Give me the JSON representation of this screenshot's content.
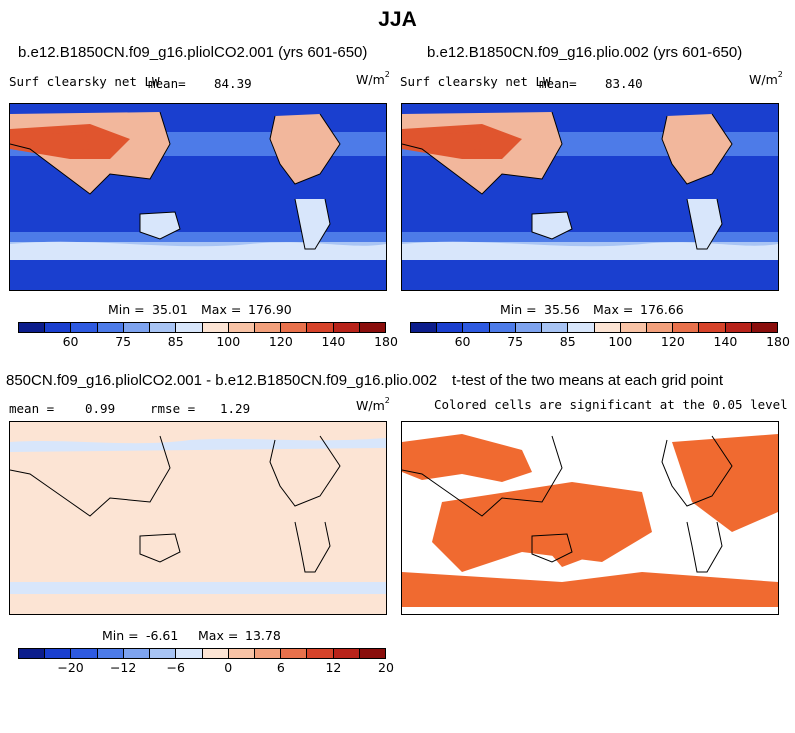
{
  "title": "JJA",
  "colors": {
    "ocean_deep": "#1a3fcf",
    "ocean_mid": "#4d7be8",
    "ocean_light": "#a8c4f4",
    "ocean_pale": "#d8e6fb",
    "land_warm": "#f2b79c",
    "land_hot": "#e0552e",
    "diff_bg": "#fce4d4",
    "sig": "#f06a30",
    "coast": "#000000"
  },
  "chart_data": [
    {
      "type": "heatmap",
      "title": "b.e12.B1850CN.f09_g16.pliolCO2.001 (yrs 601-650)",
      "variable": "Surf clearsky net LW",
      "mean_label": "mean=",
      "mean": "84.39",
      "units_base": "W/m",
      "units_exp": "2",
      "min_label": "Min =",
      "min": "35.01",
      "max_label": "Max =",
      "max": "176.90",
      "colorbar_colors": [
        "#0c1d8c",
        "#1a3fcf",
        "#2e5ae0",
        "#4d7be8",
        "#7ea3ef",
        "#a8c4f4",
        "#d8e6fb",
        "#fce4d4",
        "#f8c3a6",
        "#f2a07c",
        "#e8714c",
        "#d6432a",
        "#b8231a",
        "#8a0e0c"
      ],
      "colorbar_ticks": [
        "60",
        "75",
        "85",
        "100",
        "120",
        "140",
        "180"
      ]
    },
    {
      "type": "heatmap",
      "title": "b.e12.B1850CN.f09_g16.plio.002 (yrs 601-650)",
      "variable": "Surf clearsky net LW",
      "mean_label": "mean=",
      "mean": "83.40",
      "units_base": "W/m",
      "units_exp": "2",
      "min_label": "Min =",
      "min": "35.56",
      "max_label": "Max =",
      "max": "176.66",
      "colorbar_colors": [
        "#0c1d8c",
        "#1a3fcf",
        "#2e5ae0",
        "#4d7be8",
        "#7ea3ef",
        "#a8c4f4",
        "#d8e6fb",
        "#fce4d4",
        "#f8c3a6",
        "#f2a07c",
        "#e8714c",
        "#d6432a",
        "#b8231a",
        "#8a0e0c"
      ],
      "colorbar_ticks": [
        "60",
        "75",
        "85",
        "100",
        "120",
        "140",
        "180"
      ]
    },
    {
      "type": "heatmap",
      "title": "850CN.f09_g16.pliolCO2.001 - b.e12.B1850CN.f09_g16.plio.002",
      "mean_label": "mean =",
      "mean": "0.99",
      "rmse_label": "rmse =",
      "rmse": "1.29",
      "units_base": "W/m",
      "units_exp": "2",
      "min_label": "Min =",
      "min": "-6.61",
      "max_label": "Max =",
      "max": "13.78",
      "colorbar_colors": [
        "#0c1d8c",
        "#1a3fcf",
        "#2e5ae0",
        "#4d7be8",
        "#7ea3ef",
        "#a8c4f4",
        "#d8e6fb",
        "#fce4d4",
        "#f8c3a6",
        "#f2a07c",
        "#e8714c",
        "#d6432a",
        "#b8231a",
        "#8a0e0c"
      ],
      "colorbar_ticks": [
        "−20",
        "−12",
        "−6",
        "0",
        "6",
        "12",
        "20"
      ]
    },
    {
      "type": "heatmap",
      "title": "t-test of the two means at each grid point",
      "subtitle": "Colored cells are significant at the 0.05 level"
    }
  ]
}
